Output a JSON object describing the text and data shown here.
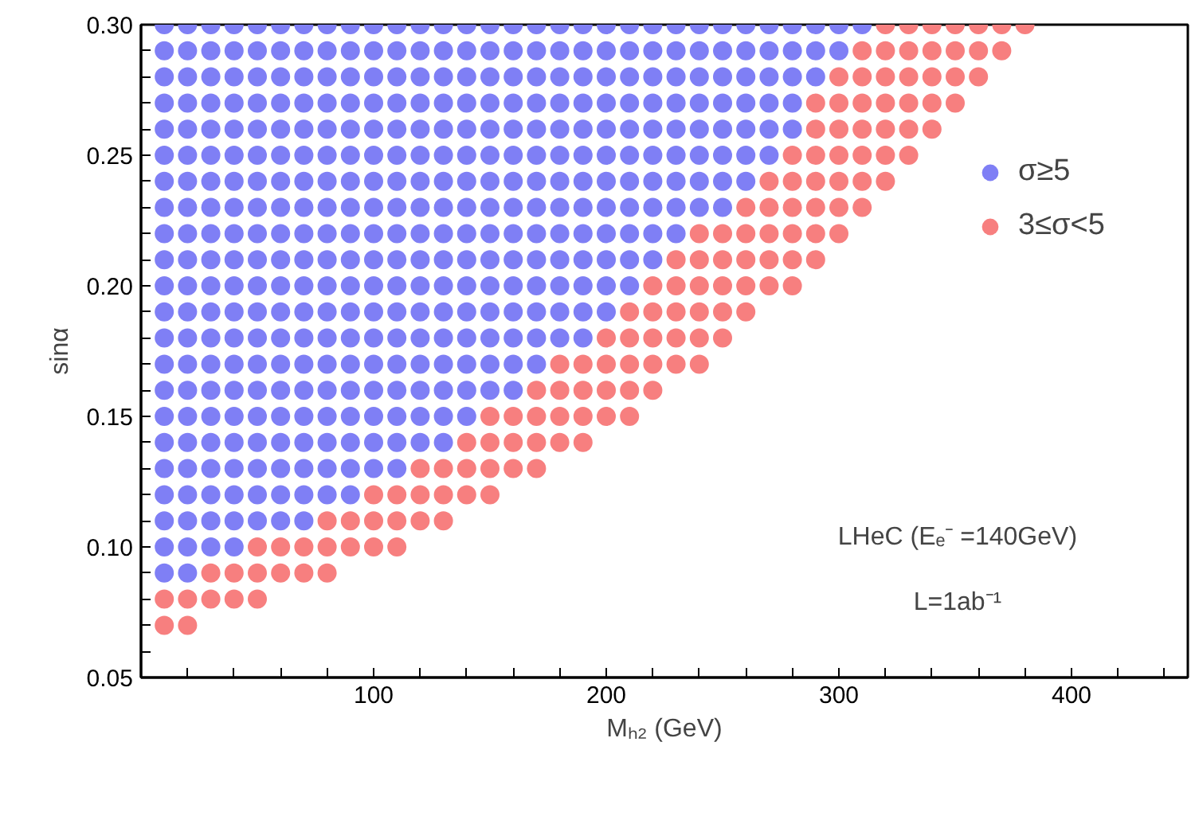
{
  "chart_data": {
    "type": "scatter",
    "xlabel": "Mₕ₂ (GeV)",
    "ylabel": "sinα",
    "xlim": [
      0,
      450
    ],
    "ylim": [
      0.05,
      0.3
    ],
    "xticks": [
      {
        "value": 20,
        "label": null
      },
      {
        "value": 40,
        "label": null
      },
      {
        "value": 60,
        "label": null
      },
      {
        "value": 80,
        "label": null
      },
      100,
      {
        "value": 120,
        "label": null
      },
      {
        "value": 140,
        "label": null
      },
      {
        "value": 160,
        "label": null
      },
      {
        "value": 180,
        "label": null
      },
      200,
      {
        "value": 220,
        "label": null
      },
      {
        "value": 240,
        "label": null
      },
      {
        "value": 260,
        "label": null
      },
      {
        "value": 280,
        "label": null
      },
      300,
      {
        "value": 320,
        "label": null
      },
      {
        "value": 340,
        "label": null
      },
      {
        "value": 360,
        "label": null
      },
      {
        "value": 380,
        "label": null
      },
      400,
      {
        "value": 420,
        "label": null
      },
      {
        "value": 440,
        "label": null
      }
    ],
    "yticks": [
      0.05,
      {
        "value": 0.06,
        "label": null
      },
      {
        "value": 0.07,
        "label": null
      },
      {
        "value": 0.08,
        "label": null
      },
      {
        "value": 0.09,
        "label": null
      },
      {
        "value": 0.1,
        "label": "0.10"
      },
      {
        "value": 0.11,
        "label": null
      },
      {
        "value": 0.12,
        "label": null
      },
      {
        "value": 0.13,
        "label": null
      },
      {
        "value": 0.14,
        "label": null
      },
      0.15,
      {
        "value": 0.16,
        "label": null
      },
      {
        "value": 0.17,
        "label": null
      },
      {
        "value": 0.18,
        "label": null
      },
      {
        "value": 0.19,
        "label": null
      },
      {
        "value": 0.2,
        "label": "0.20"
      },
      {
        "value": 0.21,
        "label": null
      },
      {
        "value": 0.22,
        "label": null
      },
      {
        "value": 0.23,
        "label": null
      },
      {
        "value": 0.24,
        "label": null
      },
      0.25,
      {
        "value": 0.26,
        "label": null
      },
      {
        "value": 0.27,
        "label": null
      },
      {
        "value": 0.28,
        "label": null
      },
      {
        "value": 0.29,
        "label": null
      },
      {
        "value": 0.3,
        "label": "0.30"
      }
    ],
    "marker": "circle",
    "legend": "top right",
    "annotations": [
      "LHeC (Eₑ⁻ =140GeV)",
      "L=1ab⁻¹"
    ],
    "series": [
      {
        "name": "σ≥5",
        "color": "#7f7ff5",
        "x": [
          10,
          20,
          30,
          40,
          50,
          60,
          70,
          80,
          90,
          100,
          110,
          120,
          130,
          140,
          150,
          160,
          170,
          180,
          190,
          200,
          210,
          220,
          230,
          240,
          250,
          260,
          270,
          280,
          290,
          300,
          310,
          10,
          20,
          30,
          40,
          50,
          60,
          70,
          80,
          90,
          100,
          110,
          120,
          130,
          140,
          150,
          160,
          170,
          180,
          190,
          200,
          210,
          220,
          230,
          240,
          250,
          260,
          270,
          280,
          290,
          300,
          10,
          20,
          30,
          40,
          50,
          60,
          70,
          80,
          90,
          100,
          110,
          120,
          130,
          140,
          150,
          160,
          170,
          180,
          190,
          200,
          210,
          220,
          230,
          240,
          250,
          260,
          270,
          280,
          290,
          10,
          20,
          30,
          40,
          50,
          60,
          70,
          80,
          90,
          100,
          110,
          120,
          130,
          140,
          150,
          160,
          170,
          180,
          190,
          200,
          210,
          220,
          230,
          240,
          250,
          260,
          270,
          280,
          10,
          20,
          30,
          40,
          50,
          60,
          70,
          80,
          90,
          100,
          110,
          120,
          130,
          140,
          150,
          160,
          170,
          180,
          190,
          200,
          210,
          220,
          230,
          240,
          250,
          260,
          270,
          280,
          10,
          20,
          30,
          40,
          50,
          60,
          70,
          80,
          90,
          100,
          110,
          120,
          130,
          140,
          150,
          160,
          170,
          180,
          190,
          200,
          210,
          220,
          230,
          240,
          250,
          260,
          270,
          10,
          20,
          30,
          40,
          50,
          60,
          70,
          80,
          90,
          100,
          110,
          120,
          130,
          140,
          150,
          160,
          170,
          180,
          190,
          200,
          210,
          220,
          230,
          240,
          250,
          260,
          10,
          20,
          30,
          40,
          50,
          60,
          70,
          80,
          90,
          100,
          110,
          120,
          130,
          140,
          150,
          160,
          170,
          180,
          190,
          200,
          210,
          220,
          230,
          240,
          250,
          10,
          20,
          30,
          40,
          50,
          60,
          70,
          80,
          90,
          100,
          110,
          120,
          130,
          140,
          150,
          160,
          170,
          180,
          190,
          200,
          210,
          220,
          230,
          10,
          20,
          30,
          40,
          50,
          60,
          70,
          80,
          90,
          100,
          110,
          120,
          130,
          140,
          150,
          160,
          170,
          180,
          190,
          200,
          210,
          220,
          10,
          20,
          30,
          40,
          50,
          60,
          70,
          80,
          90,
          100,
          110,
          120,
          130,
          140,
          150,
          160,
          170,
          180,
          190,
          200,
          210,
          10,
          20,
          30,
          40,
          50,
          60,
          70,
          80,
          90,
          100,
          110,
          120,
          130,
          140,
          150,
          160,
          170,
          180,
          190,
          200,
          10,
          20,
          30,
          40,
          50,
          60,
          70,
          80,
          90,
          100,
          110,
          120,
          130,
          140,
          150,
          160,
          170,
          180,
          190,
          10,
          20,
          30,
          40,
          50,
          60,
          70,
          80,
          90,
          100,
          110,
          120,
          130,
          140,
          150,
          160,
          170,
          10,
          20,
          30,
          40,
          50,
          60,
          70,
          80,
          90,
          100,
          110,
          120,
          130,
          140,
          150,
          160,
          10,
          20,
          30,
          40,
          50,
          60,
          70,
          80,
          90,
          100,
          110,
          120,
          130,
          140,
          10,
          20,
          30,
          40,
          50,
          60,
          70,
          80,
          90,
          100,
          110,
          120,
          130,
          10,
          20,
          30,
          40,
          50,
          60,
          70,
          80,
          90,
          100,
          110,
          10,
          20,
          30,
          40,
          50,
          60,
          70,
          80,
          90,
          10,
          20,
          30,
          40,
          50,
          60,
          70,
          10,
          20,
          30,
          40,
          10,
          20
        ],
        "values": [
          0.3,
          0.3,
          0.3,
          0.3,
          0.3,
          0.3,
          0.3,
          0.3,
          0.3,
          0.3,
          0.3,
          0.3,
          0.3,
          0.3,
          0.3,
          0.3,
          0.3,
          0.3,
          0.3,
          0.3,
          0.3,
          0.3,
          0.3,
          0.3,
          0.3,
          0.3,
          0.3,
          0.3,
          0.3,
          0.3,
          0.3,
          0.29,
          0.29,
          0.29,
          0.29,
          0.29,
          0.29,
          0.29,
          0.29,
          0.29,
          0.29,
          0.29,
          0.29,
          0.29,
          0.29,
          0.29,
          0.29,
          0.29,
          0.29,
          0.29,
          0.29,
          0.29,
          0.29,
          0.29,
          0.29,
          0.29,
          0.29,
          0.29,
          0.29,
          0.29,
          0.29,
          0.28,
          0.28,
          0.28,
          0.28,
          0.28,
          0.28,
          0.28,
          0.28,
          0.28,
          0.28,
          0.28,
          0.28,
          0.28,
          0.28,
          0.28,
          0.28,
          0.28,
          0.28,
          0.28,
          0.28,
          0.28,
          0.28,
          0.28,
          0.28,
          0.28,
          0.28,
          0.28,
          0.28,
          0.28,
          0.27,
          0.27,
          0.27,
          0.27,
          0.27,
          0.27,
          0.27,
          0.27,
          0.27,
          0.27,
          0.27,
          0.27,
          0.27,
          0.27,
          0.27,
          0.27,
          0.27,
          0.27,
          0.27,
          0.27,
          0.27,
          0.27,
          0.27,
          0.27,
          0.27,
          0.27,
          0.27,
          0.27,
          0.26,
          0.26,
          0.26,
          0.26,
          0.26,
          0.26,
          0.26,
          0.26,
          0.26,
          0.26,
          0.26,
          0.26,
          0.26,
          0.26,
          0.26,
          0.26,
          0.26,
          0.26,
          0.26,
          0.26,
          0.26,
          0.26,
          0.26,
          0.26,
          0.26,
          0.26,
          0.26,
          0.26,
          0.25,
          0.25,
          0.25,
          0.25,
          0.25,
          0.25,
          0.25,
          0.25,
          0.25,
          0.25,
          0.25,
          0.25,
          0.25,
          0.25,
          0.25,
          0.25,
          0.25,
          0.25,
          0.25,
          0.25,
          0.25,
          0.25,
          0.25,
          0.25,
          0.25,
          0.25,
          0.25,
          0.24,
          0.24,
          0.24,
          0.24,
          0.24,
          0.24,
          0.24,
          0.24,
          0.24,
          0.24,
          0.24,
          0.24,
          0.24,
          0.24,
          0.24,
          0.24,
          0.24,
          0.24,
          0.24,
          0.24,
          0.24,
          0.24,
          0.24,
          0.24,
          0.24,
          0.24,
          0.23,
          0.23,
          0.23,
          0.23,
          0.23,
          0.23,
          0.23,
          0.23,
          0.23,
          0.23,
          0.23,
          0.23,
          0.23,
          0.23,
          0.23,
          0.23,
          0.23,
          0.23,
          0.23,
          0.23,
          0.23,
          0.23,
          0.23,
          0.23,
          0.23,
          0.22,
          0.22,
          0.22,
          0.22,
          0.22,
          0.22,
          0.22,
          0.22,
          0.22,
          0.22,
          0.22,
          0.22,
          0.22,
          0.22,
          0.22,
          0.22,
          0.22,
          0.22,
          0.22,
          0.22,
          0.22,
          0.22,
          0.22,
          0.21,
          0.21,
          0.21,
          0.21,
          0.21,
          0.21,
          0.21,
          0.21,
          0.21,
          0.21,
          0.21,
          0.21,
          0.21,
          0.21,
          0.21,
          0.21,
          0.21,
          0.21,
          0.21,
          0.21,
          0.21,
          0.21,
          0.2,
          0.2,
          0.2,
          0.2,
          0.2,
          0.2,
          0.2,
          0.2,
          0.2,
          0.2,
          0.2,
          0.2,
          0.2,
          0.2,
          0.2,
          0.2,
          0.2,
          0.2,
          0.2,
          0.2,
          0.2,
          0.19,
          0.19,
          0.19,
          0.19,
          0.19,
          0.19,
          0.19,
          0.19,
          0.19,
          0.19,
          0.19,
          0.19,
          0.19,
          0.19,
          0.19,
          0.19,
          0.19,
          0.19,
          0.19,
          0.19,
          0.18,
          0.18,
          0.18,
          0.18,
          0.18,
          0.18,
          0.18,
          0.18,
          0.18,
          0.18,
          0.18,
          0.18,
          0.18,
          0.18,
          0.18,
          0.18,
          0.18,
          0.18,
          0.18,
          0.17,
          0.17,
          0.17,
          0.17,
          0.17,
          0.17,
          0.17,
          0.17,
          0.17,
          0.17,
          0.17,
          0.17,
          0.17,
          0.17,
          0.17,
          0.17,
          0.17,
          0.16,
          0.16,
          0.16,
          0.16,
          0.16,
          0.16,
          0.16,
          0.16,
          0.16,
          0.16,
          0.16,
          0.16,
          0.16,
          0.16,
          0.16,
          0.16,
          0.15,
          0.15,
          0.15,
          0.15,
          0.15,
          0.15,
          0.15,
          0.15,
          0.15,
          0.15,
          0.15,
          0.15,
          0.15,
          0.15,
          0.14,
          0.14,
          0.14,
          0.14,
          0.14,
          0.14,
          0.14,
          0.14,
          0.14,
          0.14,
          0.14,
          0.14,
          0.14,
          0.13,
          0.13,
          0.13,
          0.13,
          0.13,
          0.13,
          0.13,
          0.13,
          0.13,
          0.13,
          0.13,
          0.12,
          0.12,
          0.12,
          0.12,
          0.12,
          0.12,
          0.12,
          0.12,
          0.12,
          0.11,
          0.11,
          0.11,
          0.11,
          0.11,
          0.11,
          0.11,
          0.1,
          0.1,
          0.1,
          0.1,
          0.09,
          0.09
        ]
      },
      {
        "name": "3≤σ<5",
        "color": "#f77f7f",
        "x": [
          320,
          330,
          340,
          350,
          360,
          370,
          380,
          310,
          320,
          330,
          340,
          350,
          360,
          370,
          300,
          310,
          320,
          330,
          340,
          350,
          360,
          290,
          300,
          310,
          320,
          330,
          340,
          350,
          290,
          300,
          310,
          320,
          330,
          340,
          280,
          290,
          300,
          310,
          320,
          330,
          270,
          280,
          290,
          300,
          310,
          320,
          260,
          270,
          280,
          290,
          300,
          310,
          240,
          250,
          260,
          270,
          280,
          290,
          300,
          230,
          240,
          250,
          260,
          270,
          280,
          290,
          220,
          230,
          240,
          250,
          260,
          270,
          280,
          210,
          220,
          230,
          240,
          250,
          260,
          200,
          210,
          220,
          230,
          240,
          250,
          180,
          190,
          200,
          210,
          220,
          230,
          240,
          170,
          180,
          190,
          200,
          210,
          220,
          150,
          160,
          170,
          180,
          190,
          200,
          210,
          140,
          150,
          160,
          170,
          180,
          190,
          120,
          130,
          140,
          150,
          160,
          170,
          100,
          110,
          120,
          130,
          140,
          150,
          80,
          90,
          100,
          110,
          120,
          130,
          50,
          60,
          70,
          80,
          90,
          100,
          110,
          30,
          40,
          50,
          60,
          70,
          80,
          10,
          20,
          30,
          40,
          50,
          10,
          20
        ],
        "values": [
          0.3,
          0.3,
          0.3,
          0.3,
          0.3,
          0.3,
          0.3,
          0.29,
          0.29,
          0.29,
          0.29,
          0.29,
          0.29,
          0.29,
          0.28,
          0.28,
          0.28,
          0.28,
          0.28,
          0.28,
          0.28,
          0.27,
          0.27,
          0.27,
          0.27,
          0.27,
          0.27,
          0.27,
          0.26,
          0.26,
          0.26,
          0.26,
          0.26,
          0.26,
          0.25,
          0.25,
          0.25,
          0.25,
          0.25,
          0.25,
          0.24,
          0.24,
          0.24,
          0.24,
          0.24,
          0.24,
          0.23,
          0.23,
          0.23,
          0.23,
          0.23,
          0.23,
          0.22,
          0.22,
          0.22,
          0.22,
          0.22,
          0.22,
          0.22,
          0.21,
          0.21,
          0.21,
          0.21,
          0.21,
          0.21,
          0.21,
          0.2,
          0.2,
          0.2,
          0.2,
          0.2,
          0.2,
          0.2,
          0.19,
          0.19,
          0.19,
          0.19,
          0.19,
          0.19,
          0.18,
          0.18,
          0.18,
          0.18,
          0.18,
          0.18,
          0.17,
          0.17,
          0.17,
          0.17,
          0.17,
          0.17,
          0.17,
          0.16,
          0.16,
          0.16,
          0.16,
          0.16,
          0.16,
          0.15,
          0.15,
          0.15,
          0.15,
          0.15,
          0.15,
          0.15,
          0.14,
          0.14,
          0.14,
          0.14,
          0.14,
          0.14,
          0.13,
          0.13,
          0.13,
          0.13,
          0.13,
          0.13,
          0.12,
          0.12,
          0.12,
          0.12,
          0.12,
          0.12,
          0.11,
          0.11,
          0.11,
          0.11,
          0.11,
          0.11,
          0.1,
          0.1,
          0.1,
          0.1,
          0.1,
          0.1,
          0.1,
          0.09,
          0.09,
          0.09,
          0.09,
          0.09,
          0.09,
          0.08,
          0.08,
          0.08,
          0.08,
          0.08,
          0.07,
          0.07
        ]
      }
    ]
  }
}
